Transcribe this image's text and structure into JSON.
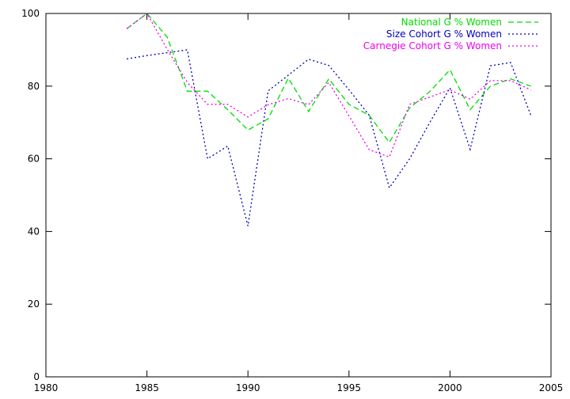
{
  "chart_data": {
    "type": "line",
    "title": "",
    "xlabel": "",
    "ylabel": "",
    "xlim": [
      1980,
      2005
    ],
    "ylim": [
      0,
      100
    ],
    "grid": false,
    "legend_position": "top-right",
    "x_ticks": [
      "1980",
      "1985",
      "1990",
      "1995",
      "2000",
      "2005"
    ],
    "y_ticks": [
      "0",
      "20",
      "40",
      "60",
      "80",
      "100"
    ],
    "series": [
      {
        "name": "National G % Women",
        "color": "#00dd00",
        "dash": "dashed",
        "x": [
          1984,
          1985,
          1986,
          1987,
          1988,
          1989,
          1990,
          1991,
          1992,
          1993,
          1994,
          1995,
          1996,
          1997,
          1998,
          1999,
          2000,
          2001,
          2002,
          2003,
          2004
        ],
        "values": [
          95.8,
          100,
          93.5,
          78.6,
          78.6,
          73.5,
          67.9,
          71.0,
          82.2,
          73.0,
          82.0,
          75.0,
          72.0,
          64.5,
          74.0,
          78.5,
          84.5,
          73.5,
          80.0,
          82.0,
          80.0
        ]
      },
      {
        "name": "Size Cohort G % Women",
        "color": "#0000bb",
        "dash": "dotted",
        "x": [
          1984,
          1985,
          1986,
          1987,
          1988,
          1989,
          1990,
          1991,
          1992,
          1993,
          1994,
          1995,
          1996,
          1997,
          1998,
          1999,
          2000,
          2001,
          2002,
          2003,
          2004
        ],
        "values": [
          87.5,
          88.4,
          89.2,
          90.0,
          60.0,
          63.5,
          41.5,
          78.7,
          83.0,
          87.4,
          85.7,
          79.0,
          72.0,
          52.0,
          60.0,
          70.0,
          79.5,
          62.6,
          85.6,
          86.5,
          72.0
        ]
      },
      {
        "name": "Carnegie Cohort G % Women",
        "color": "#ee00ee",
        "dash": "dotted",
        "x": [
          1984,
          1985,
          1986,
          1987,
          1988,
          1989,
          1990,
          1991,
          1992,
          1993,
          1994,
          1995,
          1996,
          1997,
          1998,
          1999,
          2000,
          2001,
          2002,
          2003,
          2004
        ],
        "values": [
          95.8,
          100,
          90.2,
          81.0,
          75.0,
          75.0,
          71.5,
          74.9,
          76.6,
          74.9,
          81.0,
          71.8,
          62.5,
          60.5,
          75.0,
          77.0,
          79.0,
          76.4,
          81.5,
          81.5,
          79.0
        ]
      }
    ]
  }
}
